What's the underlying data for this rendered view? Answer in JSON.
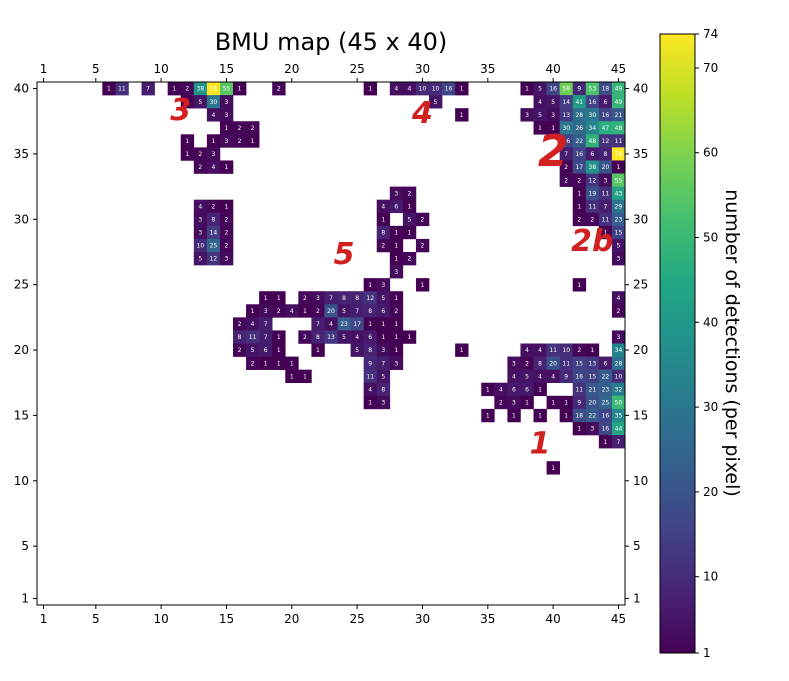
{
  "chart_data": {
    "type": "heatmap",
    "title": "BMU map (45 x 40)",
    "xlim": [
      1,
      45
    ],
    "ylim": [
      1,
      40
    ],
    "x_ticks": [
      "1",
      "5",
      "10",
      "15",
      "20",
      "25",
      "30",
      "35",
      "40",
      "45"
    ],
    "x_tick_values": [
      1,
      5,
      10,
      15,
      20,
      25,
      30,
      35,
      40,
      45
    ],
    "y_ticks": [
      "1",
      "5",
      "10",
      "15",
      "20",
      "25",
      "30",
      "35",
      "40"
    ],
    "y_tick_values": [
      1,
      5,
      10,
      15,
      20,
      25,
      30,
      35,
      40
    ],
    "colorbar": {
      "label": "number of detections (per pixel)",
      "min": 1,
      "max": 74,
      "ticks": [
        "1",
        "10",
        "20",
        "30",
        "40",
        "50",
        "60",
        "70",
        "74"
      ],
      "tick_values": [
        1,
        10,
        20,
        30,
        40,
        50,
        60,
        70,
        74
      ],
      "colormap": "viridis"
    },
    "region_labels": [
      {
        "text": "1",
        "x": 39,
        "y": 13
      },
      {
        "text": "2",
        "x": 40,
        "y": 35
      },
      {
        "text": "2b",
        "x": 43,
        "y": 28.5
      },
      {
        "text": "3",
        "x": 11.5,
        "y": 38.5
      },
      {
        "text": "4",
        "x": 30,
        "y": 38.3
      },
      {
        "text": "5",
        "x": 24,
        "y": 27.5
      }
    ],
    "cells": [
      [
        6,
        40,
        1
      ],
      [
        7,
        40,
        11
      ],
      [
        9,
        40,
        7
      ],
      [
        11,
        40,
        1
      ],
      [
        12,
        40,
        2
      ],
      [
        13,
        40,
        38
      ],
      [
        14,
        40,
        74
      ],
      [
        15,
        40,
        55
      ],
      [
        16,
        40,
        1
      ],
      [
        19,
        40,
        2
      ],
      [
        26,
        40,
        1
      ],
      [
        28,
        40,
        4
      ],
      [
        29,
        40,
        4
      ],
      [
        30,
        40,
        10
      ],
      [
        31,
        40,
        10
      ],
      [
        32,
        40,
        16
      ],
      [
        33,
        40,
        1
      ],
      [
        38,
        40,
        1
      ],
      [
        39,
        40,
        5
      ],
      [
        40,
        40,
        16
      ],
      [
        41,
        40,
        58
      ],
      [
        42,
        40,
        9
      ],
      [
        43,
        40,
        53
      ],
      [
        44,
        40,
        18
      ],
      [
        45,
        40,
        49
      ],
      [
        12,
        39,
        1
      ],
      [
        13,
        39,
        5
      ],
      [
        14,
        39,
        30
      ],
      [
        15,
        39,
        3
      ],
      [
        31,
        39,
        5
      ],
      [
        39,
        39,
        4
      ],
      [
        40,
        39,
        5
      ],
      [
        41,
        39,
        14
      ],
      [
        42,
        39,
        41
      ],
      [
        43,
        39,
        16
      ],
      [
        44,
        39,
        6
      ],
      [
        45,
        39,
        49
      ],
      [
        14,
        38,
        4
      ],
      [
        15,
        38,
        3
      ],
      [
        33,
        38,
        1
      ],
      [
        38,
        38,
        3
      ],
      [
        39,
        38,
        5
      ],
      [
        40,
        38,
        3
      ],
      [
        41,
        38,
        13
      ],
      [
        42,
        38,
        28
      ],
      [
        43,
        38,
        30
      ],
      [
        44,
        38,
        16
      ],
      [
        45,
        38,
        21
      ],
      [
        15,
        37,
        1
      ],
      [
        16,
        37,
        2
      ],
      [
        17,
        37,
        2
      ],
      [
        39,
        37,
        1
      ],
      [
        40,
        37,
        1
      ],
      [
        41,
        37,
        30
      ],
      [
        42,
        37,
        26
      ],
      [
        43,
        37,
        34
      ],
      [
        44,
        37,
        47
      ],
      [
        45,
        37,
        48
      ],
      [
        12,
        36,
        1
      ],
      [
        14,
        36,
        1
      ],
      [
        15,
        36,
        3
      ],
      [
        16,
        36,
        2
      ],
      [
        17,
        36,
        1
      ],
      [
        41,
        36,
        16
      ],
      [
        42,
        36,
        22
      ],
      [
        43,
        36,
        48
      ],
      [
        44,
        36,
        12
      ],
      [
        45,
        36,
        11
      ],
      [
        12,
        35,
        1
      ],
      [
        13,
        35,
        2
      ],
      [
        14,
        35,
        3
      ],
      [
        41,
        35,
        7
      ],
      [
        42,
        35,
        16
      ],
      [
        43,
        35,
        6
      ],
      [
        44,
        35,
        8
      ],
      [
        45,
        35,
        74
      ],
      [
        13,
        34,
        2
      ],
      [
        14,
        34,
        4
      ],
      [
        15,
        34,
        1
      ],
      [
        41,
        34,
        2
      ],
      [
        42,
        34,
        17
      ],
      [
        43,
        34,
        38
      ],
      [
        44,
        34,
        20
      ],
      [
        45,
        34,
        1
      ],
      [
        41,
        33,
        2
      ],
      [
        42,
        33,
        2
      ],
      [
        43,
        33,
        12
      ],
      [
        44,
        33,
        3
      ],
      [
        45,
        33,
        55
      ],
      [
        28,
        32,
        3
      ],
      [
        29,
        32,
        2
      ],
      [
        42,
        32,
        1
      ],
      [
        43,
        32,
        19
      ],
      [
        44,
        32,
        11
      ],
      [
        45,
        32,
        43
      ],
      [
        13,
        31,
        4
      ],
      [
        14,
        31,
        2
      ],
      [
        15,
        31,
        1
      ],
      [
        27,
        31,
        4
      ],
      [
        28,
        31,
        6
      ],
      [
        29,
        31,
        1
      ],
      [
        42,
        31,
        1
      ],
      [
        43,
        31,
        11
      ],
      [
        44,
        31,
        7
      ],
      [
        45,
        31,
        29
      ],
      [
        13,
        30,
        3
      ],
      [
        14,
        30,
        8
      ],
      [
        15,
        30,
        2
      ],
      [
        27,
        30,
        1
      ],
      [
        29,
        30,
        5
      ],
      [
        30,
        30,
        2
      ],
      [
        42,
        30,
        2
      ],
      [
        43,
        30,
        2
      ],
      [
        44,
        30,
        11
      ],
      [
        45,
        30,
        23
      ],
      [
        13,
        29,
        3
      ],
      [
        14,
        29,
        14
      ],
      [
        15,
        29,
        2
      ],
      [
        27,
        29,
        8
      ],
      [
        28,
        29,
        1
      ],
      [
        29,
        29,
        1
      ],
      [
        44,
        29,
        1
      ],
      [
        45,
        29,
        15
      ],
      [
        13,
        28,
        10
      ],
      [
        14,
        28,
        25
      ],
      [
        15,
        28,
        2
      ],
      [
        27,
        28,
        2
      ],
      [
        28,
        28,
        1
      ],
      [
        30,
        28,
        2
      ],
      [
        45,
        28,
        5
      ],
      [
        13,
        27,
        5
      ],
      [
        14,
        27,
        12
      ],
      [
        15,
        27,
        3
      ],
      [
        28,
        27,
        1
      ],
      [
        29,
        27,
        2
      ],
      [
        45,
        27,
        3
      ],
      [
        28,
        26,
        3
      ],
      [
        26,
        25,
        1
      ],
      [
        27,
        25,
        3
      ],
      [
        30,
        25,
        1
      ],
      [
        42,
        25,
        1
      ],
      [
        18,
        24,
        1
      ],
      [
        19,
        24,
        1
      ],
      [
        21,
        24,
        2
      ],
      [
        22,
        24,
        3
      ],
      [
        23,
        24,
        7
      ],
      [
        24,
        24,
        8
      ],
      [
        25,
        24,
        8
      ],
      [
        26,
        24,
        12
      ],
      [
        27,
        24,
        5
      ],
      [
        28,
        24,
        1
      ],
      [
        45,
        24,
        4
      ],
      [
        17,
        23,
        1
      ],
      [
        18,
        23,
        3
      ],
      [
        19,
        23,
        2
      ],
      [
        20,
        23,
        4
      ],
      [
        21,
        23,
        1
      ],
      [
        22,
        23,
        2
      ],
      [
        23,
        23,
        20
      ],
      [
        24,
        23,
        5
      ],
      [
        25,
        23,
        7
      ],
      [
        26,
        23,
        8
      ],
      [
        27,
        23,
        6
      ],
      [
        28,
        23,
        2
      ],
      [
        45,
        23,
        2
      ],
      [
        16,
        22,
        2
      ],
      [
        17,
        22,
        4
      ],
      [
        18,
        22,
        7
      ],
      [
        22,
        22,
        7
      ],
      [
        23,
        22,
        4
      ],
      [
        24,
        22,
        23
      ],
      [
        25,
        22,
        17
      ],
      [
        26,
        22,
        1
      ],
      [
        27,
        22,
        1
      ],
      [
        28,
        22,
        1
      ],
      [
        16,
        21,
        8
      ],
      [
        17,
        21,
        11
      ],
      [
        18,
        21,
        7
      ],
      [
        19,
        21,
        1
      ],
      [
        21,
        21,
        2
      ],
      [
        22,
        21,
        8
      ],
      [
        23,
        21,
        13
      ],
      [
        24,
        21,
        5
      ],
      [
        25,
        21,
        4
      ],
      [
        26,
        21,
        6
      ],
      [
        27,
        21,
        1
      ],
      [
        28,
        21,
        1
      ],
      [
        29,
        21,
        1
      ],
      [
        45,
        21,
        3
      ],
      [
        16,
        20,
        2
      ],
      [
        17,
        20,
        5
      ],
      [
        18,
        20,
        6
      ],
      [
        19,
        20,
        1
      ],
      [
        22,
        20,
        1
      ],
      [
        25,
        20,
        5
      ],
      [
        26,
        20,
        8
      ],
      [
        27,
        20,
        3
      ],
      [
        28,
        20,
        1
      ],
      [
        33,
        20,
        1
      ],
      [
        38,
        20,
        4
      ],
      [
        39,
        20,
        4
      ],
      [
        40,
        20,
        11
      ],
      [
        41,
        20,
        10
      ],
      [
        42,
        20,
        2
      ],
      [
        43,
        20,
        1
      ],
      [
        45,
        20,
        34
      ],
      [
        17,
        19,
        2
      ],
      [
        18,
        19,
        1
      ],
      [
        19,
        19,
        1
      ],
      [
        20,
        19,
        1
      ],
      [
        26,
        19,
        9
      ],
      [
        27,
        19,
        7
      ],
      [
        28,
        19,
        3
      ],
      [
        37,
        19,
        3
      ],
      [
        38,
        19,
        2
      ],
      [
        39,
        19,
        8
      ],
      [
        40,
        19,
        20
      ],
      [
        41,
        19,
        11
      ],
      [
        42,
        19,
        15
      ],
      [
        43,
        19,
        13
      ],
      [
        44,
        19,
        6
      ],
      [
        45,
        19,
        28
      ],
      [
        20,
        18,
        1
      ],
      [
        21,
        18,
        1
      ],
      [
        26,
        18,
        11
      ],
      [
        27,
        18,
        5
      ],
      [
        37,
        18,
        4
      ],
      [
        38,
        18,
        5
      ],
      [
        39,
        18,
        4
      ],
      [
        40,
        18,
        4
      ],
      [
        41,
        18,
        9
      ],
      [
        42,
        18,
        16
      ],
      [
        43,
        18,
        15
      ],
      [
        44,
        18,
        22
      ],
      [
        45,
        18,
        10
      ],
      [
        26,
        17,
        4
      ],
      [
        27,
        17,
        8
      ],
      [
        35,
        17,
        1
      ],
      [
        36,
        17,
        4
      ],
      [
        37,
        17,
        6
      ],
      [
        38,
        17,
        6
      ],
      [
        39,
        17,
        1
      ],
      [
        42,
        17,
        11
      ],
      [
        43,
        17,
        21
      ],
      [
        44,
        17,
        23
      ],
      [
        45,
        17,
        32
      ],
      [
        26,
        16,
        1
      ],
      [
        27,
        16,
        3
      ],
      [
        36,
        16,
        2
      ],
      [
        37,
        16,
        3
      ],
      [
        38,
        16,
        1
      ],
      [
        40,
        16,
        1
      ],
      [
        41,
        16,
        1
      ],
      [
        42,
        16,
        9
      ],
      [
        43,
        16,
        20
      ],
      [
        44,
        16,
        25
      ],
      [
        45,
        16,
        50
      ],
      [
        35,
        15,
        1
      ],
      [
        37,
        15,
        1
      ],
      [
        39,
        15,
        1
      ],
      [
        41,
        15,
        1
      ],
      [
        42,
        15,
        18
      ],
      [
        43,
        15,
        22
      ],
      [
        44,
        15,
        16
      ],
      [
        45,
        15,
        35
      ],
      [
        42,
        14,
        1
      ],
      [
        43,
        14,
        3
      ],
      [
        44,
        14,
        16
      ],
      [
        45,
        14,
        44
      ],
      [
        44,
        13,
        1
      ],
      [
        45,
        13,
        7
      ],
      [
        40,
        11,
        1
      ]
    ]
  }
}
